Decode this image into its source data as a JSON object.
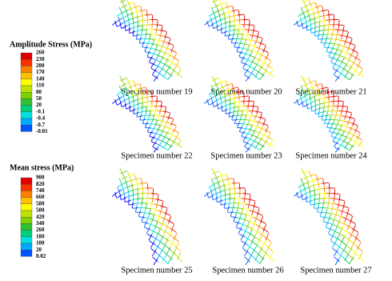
{
  "legends": [
    {
      "title": "Amplitude Stress (MPa)",
      "labels": [
        "260",
        "230",
        "200",
        "170",
        "140",
        "110",
        "80",
        "50",
        "20",
        "-0.1",
        "-0.4",
        "-0.7",
        "-0.01"
      ]
    },
    {
      "title": "Mean stress (MPa)",
      "labels": [
        "900",
        "820",
        "740",
        "660",
        "580",
        "500",
        "420",
        "340",
        "260",
        "180",
        "100",
        "20",
        "0.02"
      ]
    }
  ],
  "panels": [
    {
      "caption": "Specimen number 19"
    },
    {
      "caption": "Specimen number 20"
    },
    {
      "caption": "Specimen number 21"
    },
    {
      "caption": "Specimen number 22"
    },
    {
      "caption": "Specimen number 23"
    },
    {
      "caption": "Specimen number 24"
    },
    {
      "caption": "Specimen number 25"
    },
    {
      "caption": "Specimen number 26"
    },
    {
      "caption": "Specimen number 27"
    }
  ]
}
